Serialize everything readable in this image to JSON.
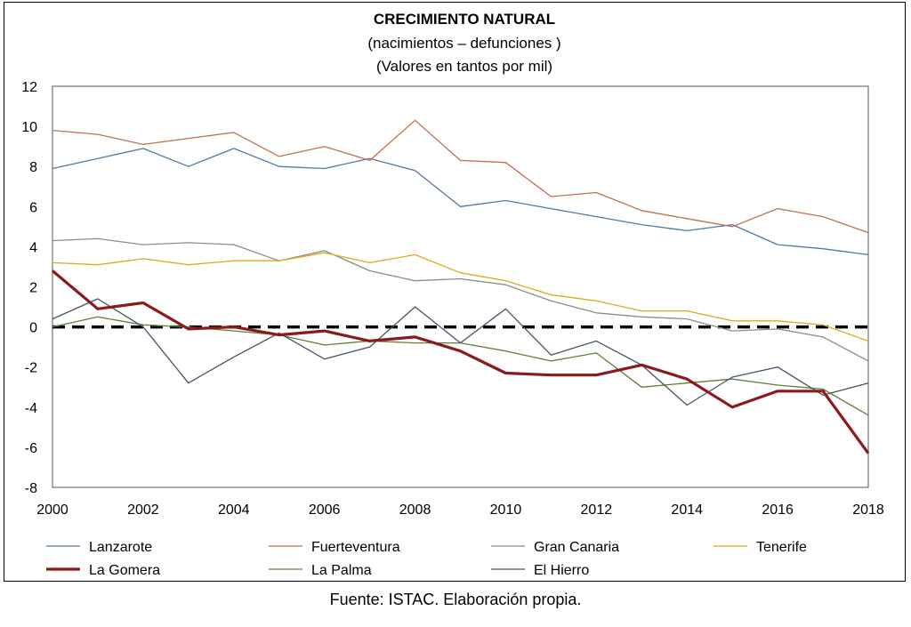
{
  "chart_data": {
    "type": "line",
    "title": "CRECIMIENTO NATURAL",
    "subtitle": "(nacimientos – defunciones )",
    "subtitle2": "(Valores en tantos por mil)",
    "x": [
      2000,
      2001,
      2002,
      2003,
      2004,
      2005,
      2006,
      2007,
      2008,
      2009,
      2010,
      2011,
      2012,
      2013,
      2014,
      2015,
      2016,
      2017,
      2018
    ],
    "xlim": [
      2000,
      2018
    ],
    "ylim": [
      -8,
      12
    ],
    "x_ticks": [
      "2000",
      "2002",
      "2004",
      "2006",
      "2008",
      "2010",
      "2012",
      "2014",
      "2016",
      "2018"
    ],
    "y_ticks": [
      "12",
      "10",
      "8",
      "6",
      "4",
      "2",
      "0",
      "-2",
      "-4",
      "-6",
      "-8"
    ],
    "grid": false,
    "legend_position": "bottom",
    "reference_line": {
      "y": 0,
      "style": "dashed",
      "color": "#000000"
    },
    "series": [
      {
        "name": "Lanzarote",
        "color": "#4e79a7",
        "width": 1.3,
        "values": [
          7.9,
          8.4,
          8.9,
          8.0,
          8.9,
          8.0,
          7.9,
          8.4,
          7.8,
          6.0,
          6.3,
          5.9,
          5.5,
          5.1,
          4.8,
          5.1,
          4.1,
          3.9,
          3.6
        ]
      },
      {
        "name": "Fuerteventura",
        "color": "#c0704a",
        "width": 1.3,
        "values": [
          9.8,
          9.6,
          9.1,
          9.4,
          9.7,
          8.5,
          9.0,
          8.3,
          10.3,
          8.3,
          8.2,
          6.5,
          6.7,
          5.8,
          5.4,
          5.0,
          5.9,
          5.5,
          4.7
        ]
      },
      {
        "name": "Gran Canaria",
        "color": "#8c8c8c",
        "width": 1.3,
        "values": [
          4.3,
          4.4,
          4.1,
          4.2,
          4.1,
          3.3,
          3.8,
          2.8,
          2.3,
          2.4,
          2.1,
          1.3,
          0.7,
          0.5,
          0.4,
          -0.2,
          -0.1,
          -0.5,
          -1.7
        ]
      },
      {
        "name": "Tenerife",
        "color": "#e0a81c",
        "width": 1.3,
        "values": [
          3.2,
          3.1,
          3.4,
          3.1,
          3.3,
          3.3,
          3.7,
          3.2,
          3.6,
          2.7,
          2.3,
          1.6,
          1.3,
          0.8,
          0.8,
          0.3,
          0.3,
          0.1,
          -0.7
        ]
      },
      {
        "name": "La Gomera",
        "color": "#8b1a1a",
        "width": 3.2,
        "values": [
          2.8,
          0.9,
          1.2,
          -0.1,
          0.0,
          -0.4,
          -0.2,
          -0.7,
          -0.5,
          -1.2,
          -2.3,
          -2.4,
          -2.4,
          -1.9,
          -2.6,
          -4.0,
          -3.2,
          -3.2,
          -6.3
        ]
      },
      {
        "name": "La Palma",
        "color": "#5f7f3a",
        "width": 1.3,
        "values": [
          0.0,
          0.5,
          0.1,
          0.0,
          -0.2,
          -0.4,
          -0.9,
          -0.7,
          -0.8,
          -0.8,
          -1.2,
          -1.7,
          -1.3,
          -3.0,
          -2.8,
          -2.6,
          -2.9,
          -3.1,
          -4.4
        ]
      },
      {
        "name": "El Hierro",
        "color": "#44546a",
        "width": 1.3,
        "values": [
          0.4,
          1.4,
          0.0,
          -2.8,
          -1.5,
          -0.3,
          -1.6,
          -1.0,
          1.0,
          -0.8,
          0.9,
          -1.4,
          -0.7,
          -1.9,
          -3.9,
          -2.5,
          -2.0,
          -3.4,
          -2.8
        ]
      }
    ]
  },
  "source": "Fuente: ISTAC. Elaboración propia."
}
